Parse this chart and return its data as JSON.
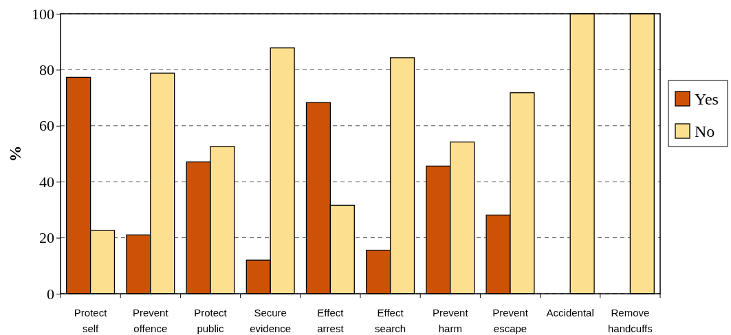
{
  "chart_data": {
    "type": "bar",
    "ylabel": "%",
    "categories": [
      "Protect self",
      "Prevent offence",
      "Protect public",
      "Secure evidence",
      "Effect arrest",
      "Effect search",
      "Prevent harm",
      "Prevent escape",
      "Accidental",
      "Remove handcuffs"
    ],
    "series": [
      {
        "name": "Yes",
        "color": "#cc5206",
        "values": [
          77.3,
          21.0,
          47.1,
          12.0,
          68.3,
          15.5,
          45.6,
          28.1,
          0,
          0
        ]
      },
      {
        "name": "No",
        "color": "#fde08f",
        "values": [
          22.6,
          78.8,
          52.6,
          87.8,
          31.6,
          84.3,
          54.2,
          71.8,
          100,
          100
        ]
      }
    ],
    "ylim": [
      0,
      100
    ],
    "yticks": [
      0,
      20,
      40,
      60,
      80,
      100
    ],
    "grid": "y",
    "legend": "right"
  }
}
